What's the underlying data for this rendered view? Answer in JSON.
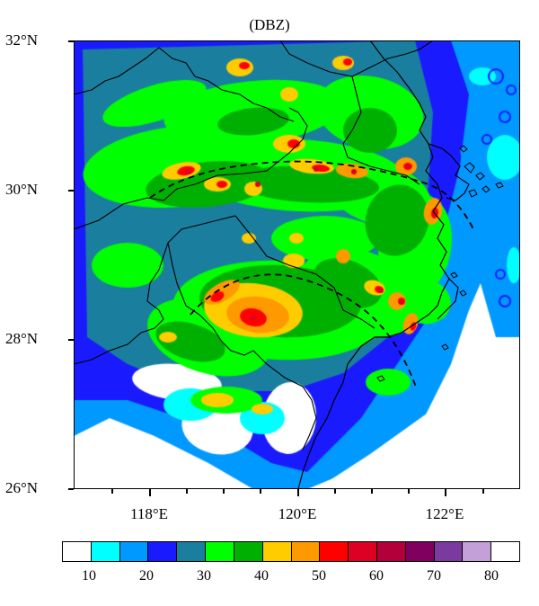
{
  "title": "(DBZ)",
  "lat_labels": [
    "32°N",
    "30°N",
    "28°N",
    "26°N"
  ],
  "lon_labels": [
    "118°E",
    "120°E",
    "122°E"
  ],
  "colorbar": {
    "colors": [
      "#ffffff",
      "#00ffff",
      "#0099ff",
      "#1a1aff",
      "#1a7f9e",
      "#00ff00",
      "#00b000",
      "#ffcc00",
      "#ff9900",
      "#ff0000",
      "#dd0022",
      "#b3003a",
      "#800060",
      "#7a3aa0",
      "#c4a0d8",
      "#ffffff"
    ],
    "labels": [
      "10",
      "20",
      "30",
      "40",
      "50",
      "60",
      "70",
      "80"
    ]
  },
  "colors": {
    "white": "#ffffff",
    "cyan": "#00ffff",
    "lightblue": "#0099ff",
    "blue": "#1a1aff",
    "teal": "#1a7f9e",
    "green": "#00ff00",
    "darkgreen": "#00b000",
    "yellow": "#ffcc00",
    "orange": "#ff9900",
    "red": "#ff0000",
    "crimson": "#dd0022"
  }
}
